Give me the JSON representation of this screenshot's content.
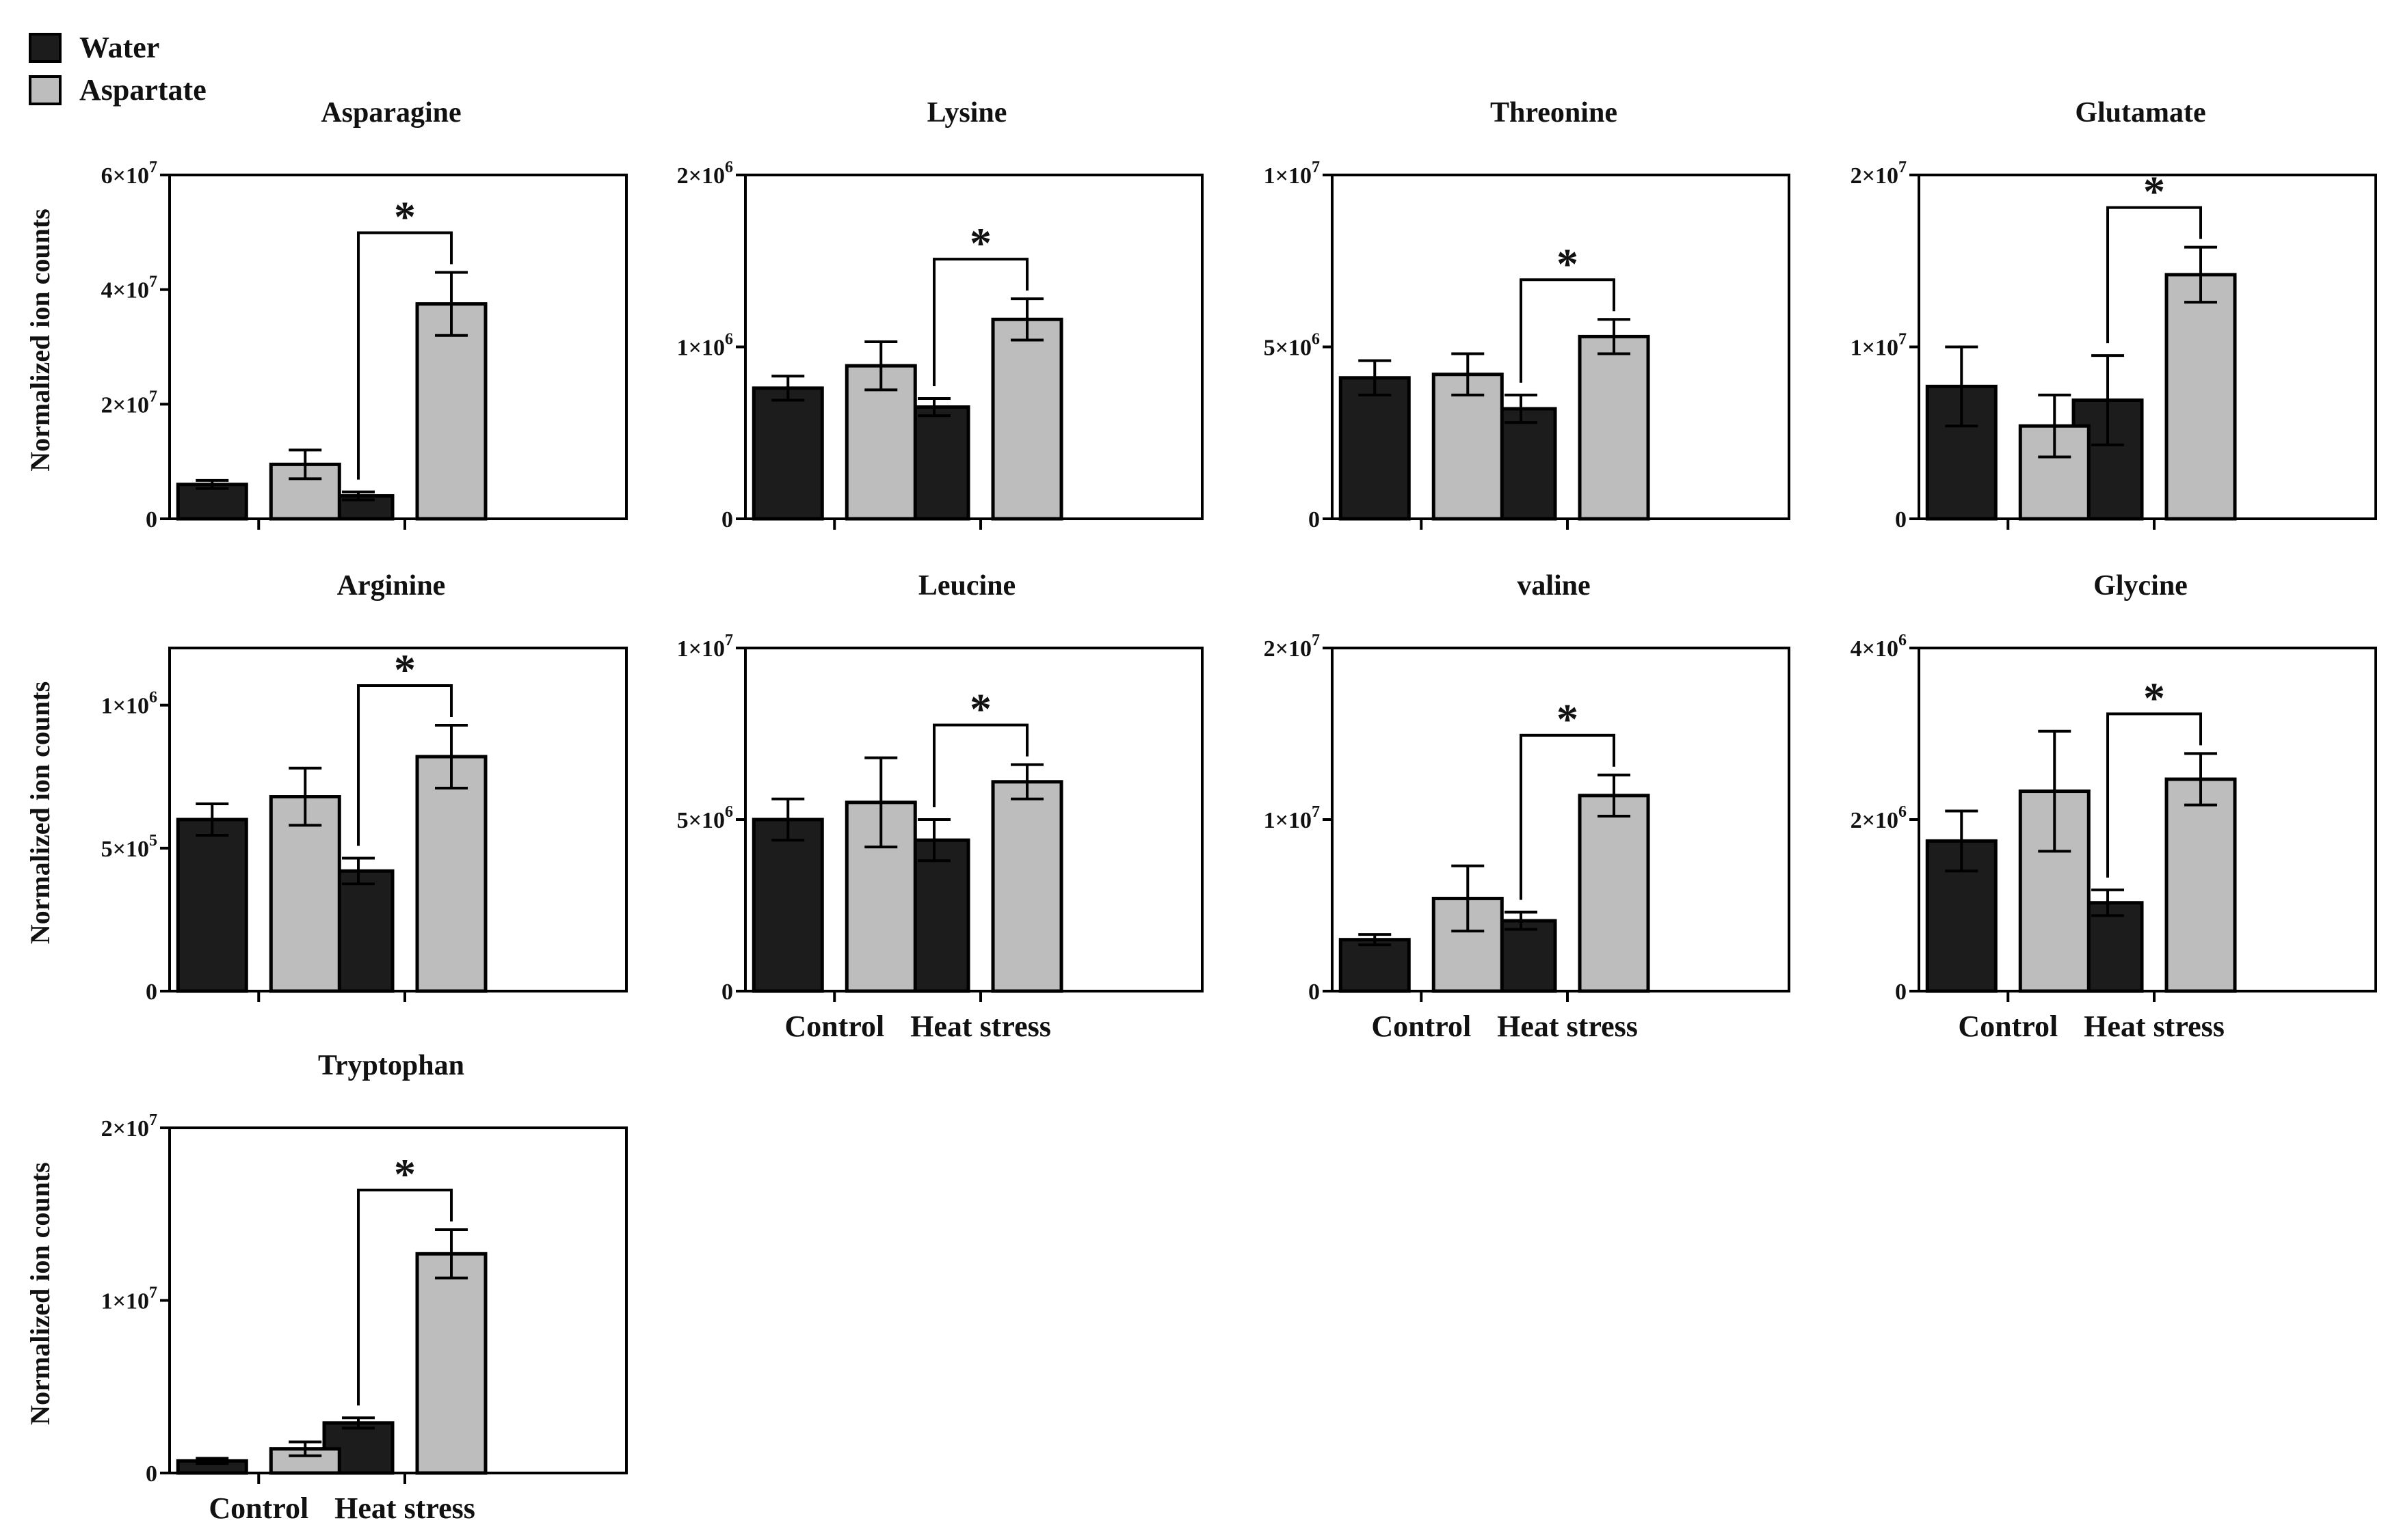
{
  "chart_data": {
    "type": "bar",
    "legend": {
      "placement": "top-left",
      "items": [
        {
          "label": "Water",
          "color": "#1c1c1c"
        },
        {
          "label": "Aspartate",
          "color": "#bdbdbd"
        }
      ]
    },
    "ylabel": "Normalized ion counts",
    "categories": [
      "Control",
      "Heat stress"
    ],
    "significance_marker": "*",
    "panels": [
      {
        "title": "Asparagine",
        "ylim": [
          0,
          60000000
        ],
        "yticks": [
          {
            "value": 0,
            "mant": "0",
            "exp": ""
          },
          {
            "value": 20000000,
            "mant": "2×10",
            "exp": "7"
          },
          {
            "value": 40000000,
            "mant": "4×10",
            "exp": "7"
          },
          {
            "value": 60000000,
            "mant": "6×10",
            "exp": "7"
          }
        ],
        "series": [
          {
            "name": "Water",
            "values": [
              6000000,
              4000000
            ],
            "errors": [
              700000,
              700000
            ]
          },
          {
            "name": "Aspartate",
            "values": [
              9500000,
              37500000
            ],
            "errors": [
              2500000,
              5500000
            ]
          }
        ],
        "significance": {
          "category": "Heat stress",
          "label": "*"
        }
      },
      {
        "title": "Lysine",
        "ylim": [
          0,
          2000000
        ],
        "yticks": [
          {
            "value": 0,
            "mant": "0",
            "exp": ""
          },
          {
            "value": 1000000,
            "mant": "1×10",
            "exp": "6"
          },
          {
            "value": 2000000,
            "mant": "2×10",
            "exp": "6"
          }
        ],
        "series": [
          {
            "name": "Water",
            "values": [
              760000,
              650000
            ],
            "errors": [
              70000,
              50000
            ]
          },
          {
            "name": "Aspartate",
            "values": [
              890000,
              1160000
            ],
            "errors": [
              140000,
              120000
            ]
          }
        ],
        "significance": {
          "category": "Heat stress",
          "label": "*"
        }
      },
      {
        "title": "Threonine",
        "ylim": [
          0,
          10000000
        ],
        "yticks": [
          {
            "value": 0,
            "mant": "0",
            "exp": ""
          },
          {
            "value": 5000000,
            "mant": "5×10",
            "exp": "6"
          },
          {
            "value": 10000000,
            "mant": "1×10",
            "exp": "7"
          }
        ],
        "series": [
          {
            "name": "Water",
            "values": [
              4100000,
              3200000
            ],
            "errors": [
              500000,
              400000
            ]
          },
          {
            "name": "Aspartate",
            "values": [
              4200000,
              5300000
            ],
            "errors": [
              600000,
              500000
            ]
          }
        ],
        "significance": {
          "category": "Heat stress",
          "label": "*"
        }
      },
      {
        "title": "Glutamate",
        "ylim": [
          0,
          20000000
        ],
        "yticks": [
          {
            "value": 0,
            "mant": "0",
            "exp": ""
          },
          {
            "value": 10000000,
            "mant": "1×10",
            "exp": "7"
          },
          {
            "value": 20000000,
            "mant": "2×10",
            "exp": "7"
          }
        ],
        "series": [
          {
            "name": "Water",
            "values": [
              7700000,
              6900000
            ],
            "errors": [
              2300000,
              2600000
            ]
          },
          {
            "name": "Aspartate",
            "values": [
              5400000,
              14200000
            ],
            "errors": [
              1800000,
              1600000
            ]
          }
        ],
        "significance": {
          "category": "Heat stress",
          "label": "*"
        }
      },
      {
        "title": "Arginine",
        "ylim": [
          0,
          1200000
        ],
        "yticks": [
          {
            "value": 0,
            "mant": "0",
            "exp": ""
          },
          {
            "value": 500000,
            "mant": "5×10",
            "exp": "5"
          },
          {
            "value": 1000000,
            "mant": "1×10",
            "exp": "6"
          }
        ],
        "series": [
          {
            "name": "Water",
            "values": [
              600000,
              420000
            ],
            "errors": [
              55000,
              45000
            ]
          },
          {
            "name": "Aspartate",
            "values": [
              680000,
              820000
            ],
            "errors": [
              100000,
              110000
            ]
          }
        ],
        "significance": {
          "category": "Heat stress",
          "label": "*"
        }
      },
      {
        "title": "Leucine",
        "ylim": [
          0,
          10000000
        ],
        "yticks": [
          {
            "value": 0,
            "mant": "0",
            "exp": ""
          },
          {
            "value": 5000000,
            "mant": "5×10",
            "exp": "6"
          },
          {
            "value": 10000000,
            "mant": "1×10",
            "exp": "7"
          }
        ],
        "series": [
          {
            "name": "Water",
            "values": [
              5000000,
              4400000
            ],
            "errors": [
              600000,
              600000
            ]
          },
          {
            "name": "Aspartate",
            "values": [
              5500000,
              6100000
            ],
            "errors": [
              1300000,
              500000
            ]
          }
        ],
        "significance": {
          "category": "Heat stress",
          "label": "*"
        }
      },
      {
        "title": "valine",
        "ylim": [
          0,
          20000000
        ],
        "yticks": [
          {
            "value": 0,
            "mant": "0",
            "exp": ""
          },
          {
            "value": 10000000,
            "mant": "1×10",
            "exp": "7"
          },
          {
            "value": 20000000,
            "mant": "2×10",
            "exp": "7"
          }
        ],
        "series": [
          {
            "name": "Water",
            "values": [
              3000000,
              4100000
            ],
            "errors": [
              300000,
              500000
            ]
          },
          {
            "name": "Aspartate",
            "values": [
              5400000,
              11400000
            ],
            "errors": [
              1900000,
              1200000
            ]
          }
        ],
        "significance": {
          "category": "Heat stress",
          "label": "*"
        }
      },
      {
        "title": "Glycine",
        "ylim": [
          0,
          4000000
        ],
        "yticks": [
          {
            "value": 0,
            "mant": "0",
            "exp": ""
          },
          {
            "value": 2000000,
            "mant": "2×10",
            "exp": "6"
          },
          {
            "value": 4000000,
            "mant": "4×10",
            "exp": "6"
          }
        ],
        "series": [
          {
            "name": "Water",
            "values": [
              1750000,
              1030000
            ],
            "errors": [
              350000,
              150000
            ]
          },
          {
            "name": "Aspartate",
            "values": [
              2330000,
              2470000
            ],
            "errors": [
              700000,
              300000
            ]
          }
        ],
        "significance": {
          "category": "Heat stress",
          "label": "*"
        }
      },
      {
        "title": "Tryptophan",
        "ylim": [
          0,
          20000000
        ],
        "yticks": [
          {
            "value": 0,
            "mant": "0",
            "exp": ""
          },
          {
            "value": 10000000,
            "mant": "1×10",
            "exp": "7"
          },
          {
            "value": 20000000,
            "mant": "2×10",
            "exp": "7"
          }
        ],
        "series": [
          {
            "name": "Water",
            "values": [
              700000,
              2900000
            ],
            "errors": [
              150000,
              300000
            ]
          },
          {
            "name": "Aspartate",
            "values": [
              1400000,
              12700000
            ],
            "errors": [
              400000,
              1400000
            ]
          }
        ],
        "significance": {
          "category": "Heat stress",
          "label": "*"
        }
      }
    ]
  }
}
